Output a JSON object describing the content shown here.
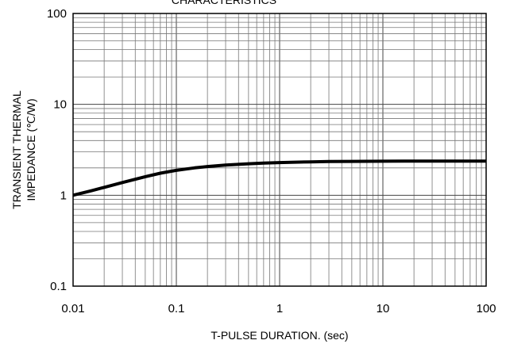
{
  "chart_data": {
    "type": "line",
    "title": "CHARACTERISTICS",
    "xlabel": "T-PULSE DURATION. (sec)",
    "ylabel_lines": [
      "TRANSIENT THERMAL",
      "IMPEDANCE (℃/W)"
    ],
    "x_scale": "log",
    "y_scale": "log",
    "xlim": [
      0.01,
      100
    ],
    "ylim": [
      0.1,
      100
    ],
    "x_ticks": [
      "0.01",
      "0.1",
      "1",
      "10",
      "100"
    ],
    "y_ticks": [
      "0.1",
      "1",
      "10",
      "100"
    ],
    "grid": true,
    "series": [
      {
        "color": "#000000",
        "x": [
          0.01,
          0.015,
          0.02,
          0.03,
          0.05,
          0.07,
          0.1,
          0.15,
          0.2,
          0.3,
          0.5,
          0.7,
          1,
          2,
          3,
          5,
          10,
          20,
          50,
          100
        ],
        "y": [
          1.0,
          1.12,
          1.22,
          1.38,
          1.6,
          1.75,
          1.88,
          2.0,
          2.07,
          2.15,
          2.22,
          2.26,
          2.29,
          2.33,
          2.35,
          2.36,
          2.37,
          2.38,
          2.38,
          2.38
        ]
      }
    ]
  }
}
